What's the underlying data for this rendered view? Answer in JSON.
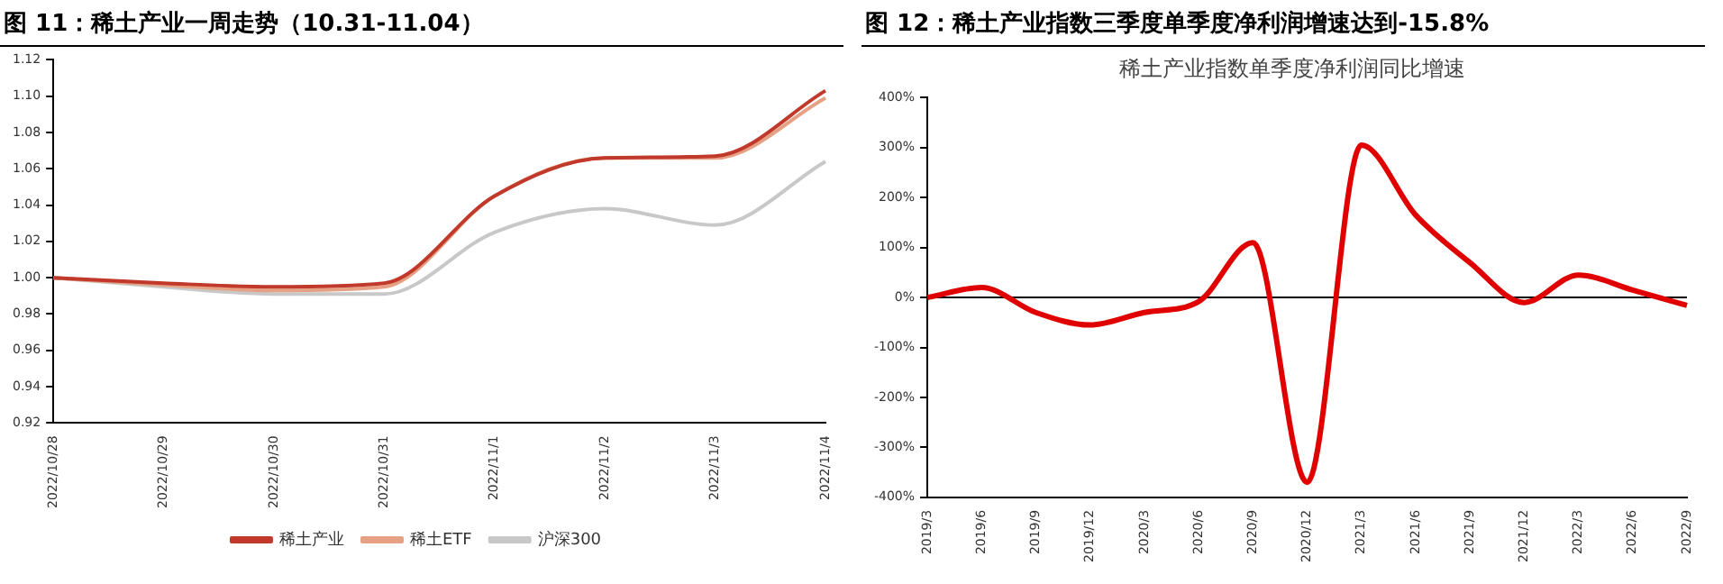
{
  "chart_data": [
    {
      "type": "line",
      "title": "图 11：稀土产业一周走势（10.31-11.04）",
      "categories": [
        "2022/10/28",
        "2022/10/29",
        "2022/10/30",
        "2022/10/31",
        "2022/11/1",
        "2022/11/2",
        "2022/11/3",
        "2022/11/4"
      ],
      "series": [
        {
          "name": "稀土产业",
          "color": "#c0392b",
          "values": [
            1.0,
            0.997,
            0.995,
            0.997,
            1.045,
            1.066,
            1.067,
            1.103
          ]
        },
        {
          "name": "稀土ETF",
          "color": "#e6a184",
          "values": [
            1.0,
            0.996,
            0.993,
            0.995,
            1.045,
            1.066,
            1.066,
            1.099
          ]
        },
        {
          "name": "沪深300",
          "color": "#c8c8c8",
          "values": [
            1.0,
            0.995,
            0.991,
            0.991,
            1.025,
            1.038,
            1.029,
            1.064
          ]
        }
      ],
      "ylim": [
        0.92,
        1.12
      ],
      "yticks": [
        {
          "value": 0.92,
          "label": "0.92"
        },
        {
          "value": 0.94,
          "label": "0.94"
        },
        {
          "value": 0.96,
          "label": "0.96"
        },
        {
          "value": 0.98,
          "label": "0.98"
        },
        {
          "value": 1.0,
          "label": "1.00"
        },
        {
          "value": 1.02,
          "label": "1.02"
        },
        {
          "value": 1.04,
          "label": "1.04"
        },
        {
          "value": 1.06,
          "label": "1.06"
        },
        {
          "value": 1.08,
          "label": "1.08"
        },
        {
          "value": 1.1,
          "label": "1.10"
        },
        {
          "value": 1.12,
          "label": "1.12"
        }
      ],
      "grid": false,
      "legend": "bottom",
      "marker": "none",
      "line_style": "solid"
    },
    {
      "type": "line",
      "title": "图 12：稀土产业指数三季度单季度净利润增速达到-15.8%",
      "subtitle": "稀土产业指数单季度净利润同比增速",
      "categories": [
        "2019/3",
        "2019/6",
        "2019/9",
        "2019/12",
        "2020/3",
        "2020/6",
        "2020/9",
        "2020/12",
        "2021/3",
        "2021/6",
        "2021/9",
        "2021/12",
        "2022/3",
        "2022/6",
        "2022/9"
      ],
      "series": [
        {
          "color": "#e00000",
          "values": [
            0,
            20,
            -30,
            -55,
            -30,
            -8,
            110,
            -370,
            305,
            165,
            70,
            -10,
            45,
            15,
            -15.8
          ]
        }
      ],
      "ylim": [
        -400,
        400
      ],
      "yticks": [
        {
          "value": -400,
          "label": "-400%"
        },
        {
          "value": -300,
          "label": "-300%"
        },
        {
          "value": -200,
          "label": "-200%"
        },
        {
          "value": -100,
          "label": "-100%"
        },
        {
          "value": 0,
          "label": "0%"
        },
        {
          "value": 100,
          "label": "100%"
        },
        {
          "value": 200,
          "label": "200%"
        },
        {
          "value": 300,
          "label": "300%"
        },
        {
          "value": 400,
          "label": "400%"
        }
      ],
      "ref_lines": [
        {
          "axis": "y",
          "value": 0,
          "color": "#000000"
        }
      ],
      "grid": false,
      "legend": false,
      "marker": "none",
      "line_style": "solid"
    }
  ]
}
